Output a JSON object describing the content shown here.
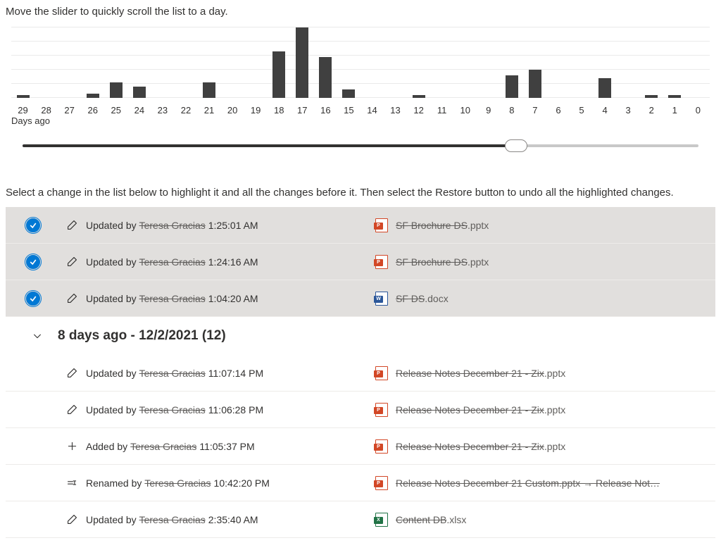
{
  "instruction1": "Move the slider to quickly scroll the list to a day.",
  "instruction2": "Select a change in the list below to highlight it and all the changes before it. Then select the Restore button to undo all the highlighted changes.",
  "chart": {
    "type": "bar",
    "axis_title": "Days ago",
    "bar_color": "#404040",
    "max": 100,
    "grid_steps": 5,
    "grid_color": "#eaeaea",
    "data": [
      {
        "label": "29",
        "value": 4
      },
      {
        "label": "28",
        "value": 0
      },
      {
        "label": "27",
        "value": 0
      },
      {
        "label": "26",
        "value": 6
      },
      {
        "label": "25",
        "value": 22
      },
      {
        "label": "24",
        "value": 16
      },
      {
        "label": "23",
        "value": 0
      },
      {
        "label": "22",
        "value": 0
      },
      {
        "label": "21",
        "value": 22
      },
      {
        "label": "20",
        "value": 0
      },
      {
        "label": "19",
        "value": 0
      },
      {
        "label": "18",
        "value": 66
      },
      {
        "label": "17",
        "value": 100
      },
      {
        "label": "16",
        "value": 58
      },
      {
        "label": "15",
        "value": 12
      },
      {
        "label": "14",
        "value": 0
      },
      {
        "label": "13",
        "value": 0
      },
      {
        "label": "12",
        "value": 4
      },
      {
        "label": "11",
        "value": 0
      },
      {
        "label": "10",
        "value": 0
      },
      {
        "label": "9",
        "value": 0
      },
      {
        "label": "8",
        "value": 32
      },
      {
        "label": "7",
        "value": 40
      },
      {
        "label": "6",
        "value": 0
      },
      {
        "label": "5",
        "value": 0
      },
      {
        "label": "4",
        "value": 28
      },
      {
        "label": "3",
        "value": 0
      },
      {
        "label": "2",
        "value": 4
      },
      {
        "label": "1",
        "value": 4
      },
      {
        "label": "0",
        "value": 0
      }
    ]
  },
  "slider": {
    "min": 0,
    "max": 29,
    "value_days_ago": 8,
    "fill_percent": 73,
    "fill_color": "#323130",
    "track_color": "#c8c8c8"
  },
  "list": {
    "selected_rows": [
      {
        "action": "updated",
        "verb": "Updated by",
        "user": "Teresa Gracias",
        "time": "1:25:01 AM",
        "file_type": "pptx",
        "file_name": "SF Brochure DS",
        "file_ext": ".pptx"
      },
      {
        "action": "updated",
        "verb": "Updated by",
        "user": "Teresa Gracias",
        "time": "1:24:16 AM",
        "file_type": "pptx",
        "file_name": "SF Brochure DS",
        "file_ext": ".pptx"
      },
      {
        "action": "updated",
        "verb": "Updated by",
        "user": "Teresa Gracias",
        "time": "1:04:20 AM",
        "file_type": "docx",
        "file_name": "SF DS",
        "file_ext": ".docx"
      }
    ],
    "group": {
      "title": "8 days ago - 12/2/2021 (12)",
      "rows": [
        {
          "action": "updated",
          "verb": "Updated by",
          "user": "Teresa Gracias",
          "time": "11:07:14 PM",
          "file_type": "pptx",
          "file_name": "Release Notes December 21 - Zix",
          "file_ext": ".pptx"
        },
        {
          "action": "updated",
          "verb": "Updated by",
          "user": "Teresa Gracias",
          "time": "11:06:28 PM",
          "file_type": "pptx",
          "file_name": "Release Notes December 21 - Zix",
          "file_ext": ".pptx"
        },
        {
          "action": "added",
          "verb": "Added by",
          "user": "Teresa Gracias",
          "time": "11:05:37 PM",
          "file_type": "pptx",
          "file_name": "Release Notes December 21 - Zix",
          "file_ext": ".pptx"
        },
        {
          "action": "renamed",
          "verb": "Renamed by",
          "user": "Teresa Gracias",
          "time": "10:42:20 PM",
          "file_type": "pptx",
          "file_name": "Release Notes December 21  Custom.pptx → Release Not…",
          "file_ext": ""
        },
        {
          "action": "updated",
          "verb": "Updated by",
          "user": "Teresa Gracias",
          "time": "2:35:40 AM",
          "file_type": "xlsx",
          "file_name": "Content DB",
          "file_ext": ".xlsx"
        }
      ]
    }
  },
  "colors": {
    "selected_bg": "#e1dfdd",
    "border": "#edebe9",
    "accent": "#0078d4",
    "pptx": "#d24726",
    "docx": "#2b579a",
    "xlsx": "#217346"
  }
}
